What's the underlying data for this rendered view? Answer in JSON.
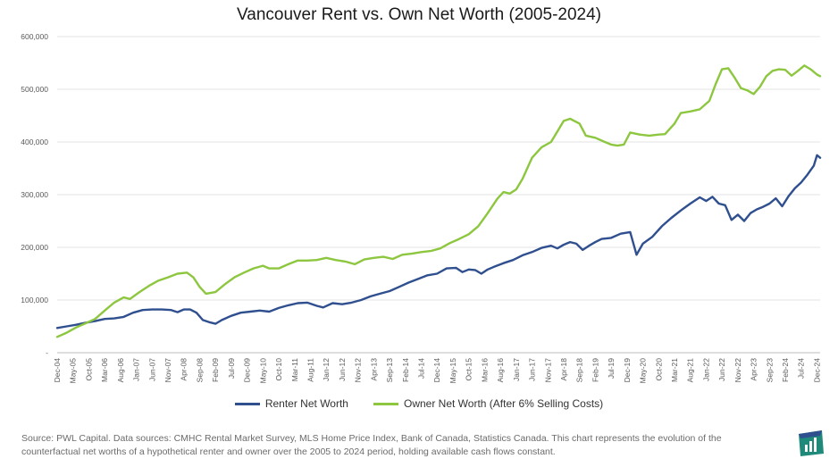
{
  "chart_data": {
    "type": "line",
    "title": "Vancouver Rent vs. Own Net Worth (2005-2024)",
    "ylim": [
      0,
      600000
    ],
    "y_ticks": [
      "-",
      "100,000",
      "200,000",
      "300,000",
      "400,000",
      "500,000",
      "600,000"
    ],
    "y_tick_values": [
      0,
      100000,
      200000,
      300000,
      400000,
      500000,
      600000
    ],
    "grid": "horizontal",
    "legend_position": "bottom",
    "x_tick_labels": [
      "Dec-04",
      "May-05",
      "Oct-05",
      "Mar-06",
      "Aug-06",
      "Jan-07",
      "Jun-07",
      "Nov-07",
      "Apr-08",
      "Sep-08",
      "Feb-09",
      "Jul-09",
      "Dec-09",
      "May-10",
      "Oct-10",
      "Mar-11",
      "Aug-11",
      "Jan-12",
      "Jun-12",
      "Nov-12",
      "Apr-13",
      "Sep-13",
      "Feb-14",
      "Jul-14",
      "Dec-14",
      "May-15",
      "Oct-15",
      "Mar-16",
      "Aug-16",
      "Jan-17",
      "Jun-17",
      "Nov-17",
      "Apr-18",
      "Sep-18",
      "Feb-19",
      "Jul-19",
      "Dec-19",
      "May-20",
      "Oct-20",
      "Mar-21",
      "Aug-21",
      "Jan-22",
      "Jun-22",
      "Nov-22",
      "Apr-23",
      "Sep-23",
      "Feb-24",
      "Jul-24",
      "Dec-24"
    ],
    "x_tick_months": [
      0,
      5,
      10,
      15,
      20,
      25,
      30,
      35,
      40,
      45,
      50,
      55,
      60,
      65,
      70,
      75,
      80,
      85,
      90,
      95,
      100,
      105,
      110,
      115,
      120,
      125,
      130,
      135,
      140,
      145,
      150,
      155,
      160,
      165,
      170,
      175,
      180,
      185,
      190,
      195,
      200,
      205,
      210,
      215,
      220,
      225,
      230,
      235,
      240
    ],
    "series": [
      {
        "name": "Renter Net Worth",
        "color": "#2f4f8f",
        "points": [
          [
            0,
            47000
          ],
          [
            3,
            50000
          ],
          [
            6,
            53000
          ],
          [
            9,
            57000
          ],
          [
            12,
            60000
          ],
          [
            15,
            64000
          ],
          [
            18,
            65000
          ],
          [
            21,
            68000
          ],
          [
            24,
            76000
          ],
          [
            27,
            81000
          ],
          [
            30,
            82000
          ],
          [
            33,
            82000
          ],
          [
            36,
            81000
          ],
          [
            38,
            77000
          ],
          [
            40,
            82000
          ],
          [
            42,
            82000
          ],
          [
            44,
            76000
          ],
          [
            46,
            62000
          ],
          [
            48,
            58000
          ],
          [
            50,
            55000
          ],
          [
            52,
            62000
          ],
          [
            55,
            70000
          ],
          [
            58,
            76000
          ],
          [
            61,
            78000
          ],
          [
            64,
            80000
          ],
          [
            67,
            78000
          ],
          [
            70,
            85000
          ],
          [
            73,
            90000
          ],
          [
            76,
            94000
          ],
          [
            79,
            95000
          ],
          [
            82,
            89000
          ],
          [
            84,
            86000
          ],
          [
            87,
            94000
          ],
          [
            90,
            92000
          ],
          [
            93,
            95000
          ],
          [
            96,
            100000
          ],
          [
            99,
            107000
          ],
          [
            102,
            112000
          ],
          [
            105,
            117000
          ],
          [
            108,
            125000
          ],
          [
            111,
            133000
          ],
          [
            114,
            140000
          ],
          [
            117,
            147000
          ],
          [
            120,
            150000
          ],
          [
            123,
            160000
          ],
          [
            126,
            161000
          ],
          [
            128,
            153000
          ],
          [
            130,
            158000
          ],
          [
            132,
            157000
          ],
          [
            134,
            150000
          ],
          [
            136,
            158000
          ],
          [
            138,
            163000
          ],
          [
            141,
            170000
          ],
          [
            144,
            176000
          ],
          [
            147,
            185000
          ],
          [
            150,
            191000
          ],
          [
            153,
            199000
          ],
          [
            156,
            203000
          ],
          [
            158,
            198000
          ],
          [
            160,
            205000
          ],
          [
            162,
            210000
          ],
          [
            164,
            207000
          ],
          [
            166,
            195000
          ],
          [
            168,
            203000
          ],
          [
            170,
            210000
          ],
          [
            172,
            216000
          ],
          [
            175,
            218000
          ],
          [
            178,
            226000
          ],
          [
            181,
            229000
          ],
          [
            183,
            186000
          ],
          [
            185,
            207000
          ],
          [
            188,
            220000
          ],
          [
            191,
            240000
          ],
          [
            194,
            256000
          ],
          [
            197,
            270000
          ],
          [
            200,
            283000
          ],
          [
            203,
            295000
          ],
          [
            205,
            288000
          ],
          [
            207,
            296000
          ],
          [
            209,
            283000
          ],
          [
            211,
            280000
          ],
          [
            213,
            252000
          ],
          [
            215,
            262000
          ],
          [
            217,
            250000
          ],
          [
            219,
            265000
          ],
          [
            221,
            272000
          ],
          [
            223,
            277000
          ],
          [
            225,
            283000
          ],
          [
            227,
            293000
          ],
          [
            229,
            278000
          ],
          [
            231,
            297000
          ],
          [
            233,
            312000
          ],
          [
            235,
            323000
          ],
          [
            237,
            338000
          ],
          [
            239,
            355000
          ],
          [
            240,
            375000
          ],
          [
            241,
            370000
          ]
        ]
      },
      {
        "name": "Owner Net Worth (After 6% Selling Costs)",
        "color": "#8dc63f",
        "points": [
          [
            0,
            30000
          ],
          [
            3,
            38000
          ],
          [
            6,
            48000
          ],
          [
            9,
            56000
          ],
          [
            12,
            64000
          ],
          [
            15,
            80000
          ],
          [
            18,
            95000
          ],
          [
            21,
            105000
          ],
          [
            23,
            102000
          ],
          [
            26,
            115000
          ],
          [
            29,
            127000
          ],
          [
            32,
            137000
          ],
          [
            35,
            143000
          ],
          [
            38,
            150000
          ],
          [
            41,
            152000
          ],
          [
            43,
            143000
          ],
          [
            45,
            125000
          ],
          [
            47,
            112000
          ],
          [
            50,
            115000
          ],
          [
            53,
            130000
          ],
          [
            56,
            143000
          ],
          [
            59,
            152000
          ],
          [
            62,
            160000
          ],
          [
            65,
            165000
          ],
          [
            67,
            160000
          ],
          [
            70,
            160000
          ],
          [
            73,
            168000
          ],
          [
            76,
            175000
          ],
          [
            79,
            175000
          ],
          [
            82,
            176000
          ],
          [
            85,
            180000
          ],
          [
            88,
            176000
          ],
          [
            91,
            173000
          ],
          [
            94,
            168000
          ],
          [
            97,
            177000
          ],
          [
            100,
            180000
          ],
          [
            103,
            182000
          ],
          [
            106,
            178000
          ],
          [
            109,
            186000
          ],
          [
            112,
            188000
          ],
          [
            115,
            191000
          ],
          [
            118,
            193000
          ],
          [
            121,
            198000
          ],
          [
            124,
            208000
          ],
          [
            127,
            216000
          ],
          [
            130,
            225000
          ],
          [
            133,
            240000
          ],
          [
            136,
            265000
          ],
          [
            139,
            292000
          ],
          [
            141,
            305000
          ],
          [
            143,
            302000
          ],
          [
            145,
            310000
          ],
          [
            147,
            330000
          ],
          [
            150,
            370000
          ],
          [
            153,
            390000
          ],
          [
            156,
            400000
          ],
          [
            158,
            420000
          ],
          [
            160,
            440000
          ],
          [
            162,
            444000
          ],
          [
            165,
            435000
          ],
          [
            167,
            412000
          ],
          [
            170,
            408000
          ],
          [
            173,
            400000
          ],
          [
            175,
            395000
          ],
          [
            177,
            393000
          ],
          [
            179,
            395000
          ],
          [
            181,
            418000
          ],
          [
            184,
            414000
          ],
          [
            187,
            412000
          ],
          [
            190,
            414000
          ],
          [
            192,
            415000
          ],
          [
            195,
            435000
          ],
          [
            197,
            455000
          ],
          [
            200,
            458000
          ],
          [
            203,
            462000
          ],
          [
            206,
            478000
          ],
          [
            208,
            510000
          ],
          [
            210,
            538000
          ],
          [
            212,
            540000
          ],
          [
            214,
            522000
          ],
          [
            216,
            502000
          ],
          [
            218,
            498000
          ],
          [
            220,
            491000
          ],
          [
            222,
            505000
          ],
          [
            224,
            525000
          ],
          [
            226,
            535000
          ],
          [
            228,
            538000
          ],
          [
            230,
            537000
          ],
          [
            232,
            526000
          ],
          [
            234,
            535000
          ],
          [
            236,
            545000
          ],
          [
            238,
            538000
          ],
          [
            240,
            528000
          ],
          [
            241,
            525000
          ]
        ]
      }
    ]
  },
  "source_note": "Source: PWL Capital. Data sources: CMHC Rental Market Survey, MLS Home Price Index, Bank of Canada, Statistics Canada. This chart represents the evolution of the counterfactual net worths of a hypothetical renter and owner over the 2005 to 2024 period, holding available cash flows constant.",
  "logo": {
    "name": "pwl-logo",
    "color": "#2a9d8f"
  }
}
